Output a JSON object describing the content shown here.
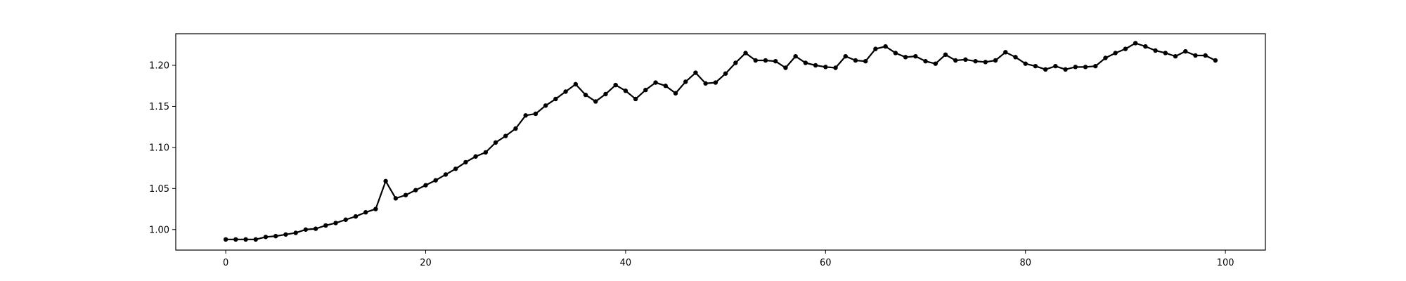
{
  "chart_data": {
    "type": "line",
    "title": "",
    "xlabel": "",
    "ylabel": "",
    "xlim": [
      -5,
      104
    ],
    "ylim": [
      0.975,
      1.2385
    ],
    "xticks": [
      0,
      20,
      40,
      60,
      80,
      100
    ],
    "yticks": [
      1.0,
      1.05,
      1.1,
      1.15,
      1.2
    ],
    "xtick_labels": [
      "0",
      "20",
      "40",
      "60",
      "80",
      "100"
    ],
    "ytick_labels": [
      "1.00",
      "1.05",
      "1.10",
      "1.15",
      "1.20"
    ],
    "grid": false,
    "legend": "none",
    "series": [
      {
        "color": "#000000",
        "marker": "circle",
        "x": [
          0,
          1,
          2,
          3,
          4,
          5,
          6,
          7,
          8,
          9,
          10,
          11,
          12,
          13,
          14,
          15,
          16,
          17,
          18,
          19,
          20,
          21,
          22,
          23,
          24,
          25,
          26,
          27,
          28,
          29,
          30,
          31,
          32,
          33,
          34,
          35,
          36,
          37,
          38,
          39,
          40,
          41,
          42,
          43,
          44,
          45,
          46,
          47,
          48,
          49,
          50,
          51,
          52,
          53,
          54,
          55,
          56,
          57,
          58,
          59,
          60,
          61,
          62,
          63,
          64,
          65,
          66,
          67,
          68,
          69,
          70,
          71,
          72,
          73,
          74,
          75,
          76,
          77,
          78,
          79,
          80,
          81,
          82,
          83,
          84,
          85,
          86,
          87,
          88,
          89,
          90,
          91,
          92,
          93,
          94,
          95,
          96,
          97,
          98,
          99
        ],
        "y": [
          0.988,
          0.988,
          0.988,
          0.988,
          0.991,
          0.992,
          0.994,
          0.996,
          1.0,
          1.001,
          1.005,
          1.008,
          1.012,
          1.016,
          1.021,
          1.025,
          1.059,
          1.038,
          1.042,
          1.048,
          1.054,
          1.06,
          1.067,
          1.074,
          1.082,
          1.089,
          1.094,
          1.106,
          1.114,
          1.123,
          1.139,
          1.141,
          1.151,
          1.159,
          1.168,
          1.177,
          1.164,
          1.156,
          1.165,
          1.176,
          1.169,
          1.159,
          1.17,
          1.179,
          1.175,
          1.166,
          1.18,
          1.191,
          1.178,
          1.179,
          1.19,
          1.203,
          1.215,
          1.206,
          1.206,
          1.205,
          1.197,
          1.211,
          1.203,
          1.2,
          1.198,
          1.197,
          1.211,
          1.206,
          1.205,
          1.22,
          1.223,
          1.215,
          1.21,
          1.211,
          1.205,
          1.202,
          1.213,
          1.206,
          1.207,
          1.205,
          1.204,
          1.206,
          1.216,
          1.21,
          1.202,
          1.199,
          1.195,
          1.199,
          1.195,
          1.198,
          1.198,
          1.199,
          1.209,
          1.215,
          1.22,
          1.227,
          1.223,
          1.218,
          1.215,
          1.211,
          1.217,
          1.212,
          1.212,
          1.206
        ]
      }
    ]
  }
}
